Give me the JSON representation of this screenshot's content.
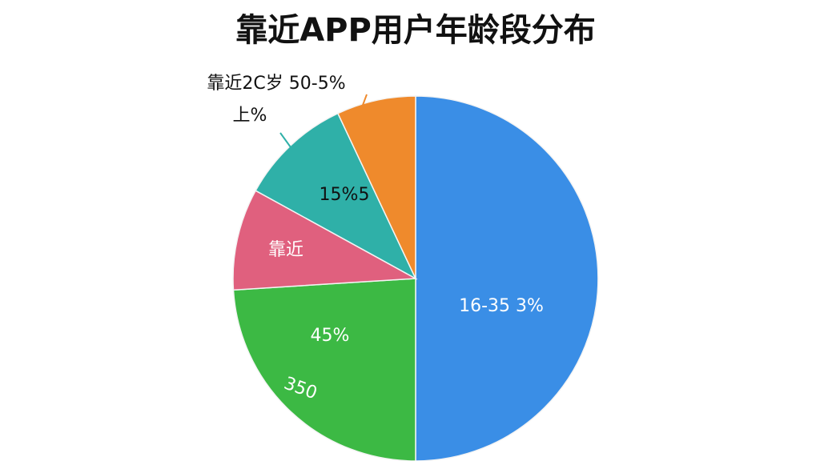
{
  "chart_data": {
    "type": "pie",
    "title": "靠近APP用户年龄段分布",
    "values": [
      50,
      24,
      9,
      10,
      7
    ],
    "colors": [
      "#3a8ee6",
      "#3cb944",
      "#e0607e",
      "#2fb0a8",
      "#ef8a2c"
    ],
    "annotations": [
      "16-35 3%",
      "45%",
      "350",
      "靠近",
      "15%5",
      "靠近2C岁 50-5%",
      "上%"
    ]
  }
}
